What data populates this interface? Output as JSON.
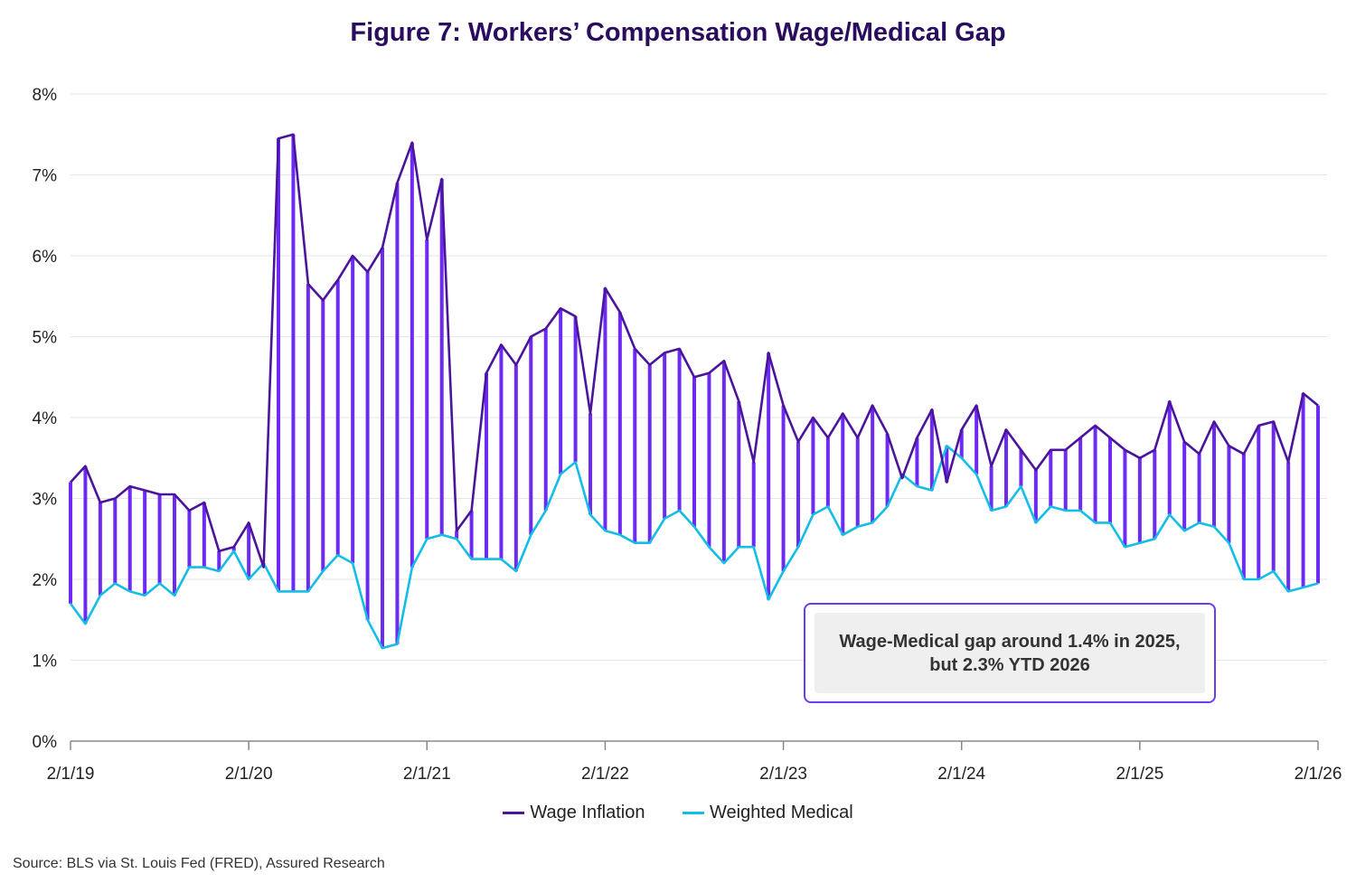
{
  "title": "Figure 7: Workers’ Compensation Wage/Medical Gap",
  "source": "Source: BLS via St. Louis Fed (FRED), Assured Research",
  "annotation": "Wage-Medical gap around 1.4% in 2025, but 2.3% YTD 2026",
  "colors": {
    "wage": "#4a149c",
    "medical": "#14bde8",
    "gap_fill": "#6d2af0",
    "grid": "#e6e6e6",
    "axis": "#888888",
    "annotation_border": "#6b3cf0"
  },
  "chart_data": {
    "type": "line",
    "title": "Figure 7: Workers’ Compensation Wage/Medical Gap",
    "xlabel": "",
    "ylabel": "",
    "ylim": [
      0,
      8
    ],
    "y_ticks": [
      "0%",
      "1%",
      "2%",
      "3%",
      "4%",
      "5%",
      "6%",
      "7%",
      "8%"
    ],
    "x_ticks": [
      "2/1/19",
      "2/1/20",
      "2/1/21",
      "2/1/22",
      "2/1/23",
      "2/1/24",
      "2/1/25",
      "2/1/26"
    ],
    "grid": "horizontal",
    "legend_position": "bottom",
    "x": [
      "2019-02",
      "2019-03",
      "2019-04",
      "2019-05",
      "2019-06",
      "2019-07",
      "2019-08",
      "2019-09",
      "2019-10",
      "2019-11",
      "2019-12",
      "2020-01",
      "2020-02",
      "2020-03",
      "2020-04",
      "2020-05",
      "2020-06",
      "2020-07",
      "2020-08",
      "2020-09",
      "2020-10",
      "2020-11",
      "2020-12",
      "2021-01",
      "2021-02",
      "2021-03",
      "2021-04",
      "2021-05",
      "2021-06",
      "2021-07",
      "2021-08",
      "2021-09",
      "2021-10",
      "2021-11",
      "2021-12",
      "2022-01",
      "2022-02",
      "2022-03",
      "2022-04",
      "2022-05",
      "2022-06",
      "2022-07",
      "2022-08",
      "2022-09",
      "2022-10",
      "2022-11",
      "2022-12",
      "2023-01",
      "2023-02",
      "2023-03",
      "2023-04",
      "2023-05",
      "2023-06",
      "2023-07",
      "2023-08",
      "2023-09",
      "2023-10",
      "2023-11",
      "2023-12",
      "2024-01",
      "2024-02",
      "2024-03",
      "2024-04",
      "2024-05",
      "2024-06",
      "2024-07",
      "2024-08",
      "2024-09",
      "2024-10",
      "2024-11",
      "2024-12",
      "2025-01",
      "2025-02",
      "2025-03",
      "2025-04",
      "2025-05",
      "2025-06",
      "2025-07",
      "2025-08",
      "2025-09",
      "2025-10",
      "2025-11",
      "2025-12",
      "2026-01",
      "2026-02"
    ],
    "series": [
      {
        "name": "Wage Inflation",
        "values": [
          3.2,
          3.4,
          2.95,
          3.0,
          3.15,
          3.1,
          3.05,
          3.05,
          2.85,
          2.95,
          2.35,
          2.4,
          2.7,
          2.15,
          7.45,
          7.5,
          5.65,
          5.45,
          5.7,
          6.0,
          5.8,
          6.1,
          6.9,
          7.4,
          6.2,
          6.95,
          2.6,
          2.85,
          4.55,
          4.9,
          4.65,
          5.0,
          5.1,
          5.35,
          5.25,
          4.05,
          5.6,
          5.3,
          4.85,
          4.65,
          4.8,
          4.85,
          4.5,
          4.55,
          4.7,
          4.2,
          3.45,
          4.8,
          4.15,
          3.7,
          4.0,
          3.75,
          4.05,
          3.75,
          4.15,
          3.8,
          3.25,
          3.75,
          4.1,
          3.2,
          3.85,
          4.15,
          3.4,
          3.85,
          3.6,
          3.35,
          3.6,
          3.6,
          3.75,
          3.9,
          3.75,
          3.6,
          3.5,
          3.6,
          4.2,
          3.7,
          3.55,
          3.95,
          3.65,
          3.55,
          3.9,
          3.95,
          3.45,
          4.3,
          4.15
        ]
      },
      {
        "name": "Weighted Medical",
        "values": [
          1.7,
          1.45,
          1.8,
          1.95,
          1.85,
          1.8,
          1.95,
          1.8,
          2.15,
          2.15,
          2.1,
          2.35,
          2.0,
          2.2,
          1.85,
          1.85,
          1.85,
          2.1,
          2.3,
          2.2,
          1.5,
          1.15,
          1.2,
          2.15,
          2.5,
          2.55,
          2.5,
          2.25,
          2.25,
          2.25,
          2.1,
          2.55,
          2.85,
          3.3,
          3.45,
          2.8,
          2.6,
          2.55,
          2.45,
          2.45,
          2.75,
          2.85,
          2.65,
          2.4,
          2.2,
          2.4,
          2.4,
          1.75,
          2.1,
          2.4,
          2.8,
          2.9,
          2.55,
          2.65,
          2.7,
          2.9,
          3.3,
          3.15,
          3.1,
          3.65,
          3.5,
          3.3,
          2.85,
          2.9,
          3.15,
          2.7,
          2.9,
          2.85,
          2.85,
          2.7,
          2.7,
          2.4,
          2.45,
          2.5,
          2.8,
          2.6,
          2.7,
          2.65,
          2.45,
          2.0,
          2.0,
          2.1,
          1.85,
          1.9,
          1.95
        ]
      }
    ]
  },
  "legend": {
    "wage_label": "Wage Inflation",
    "medical_label": "Weighted Medical"
  }
}
